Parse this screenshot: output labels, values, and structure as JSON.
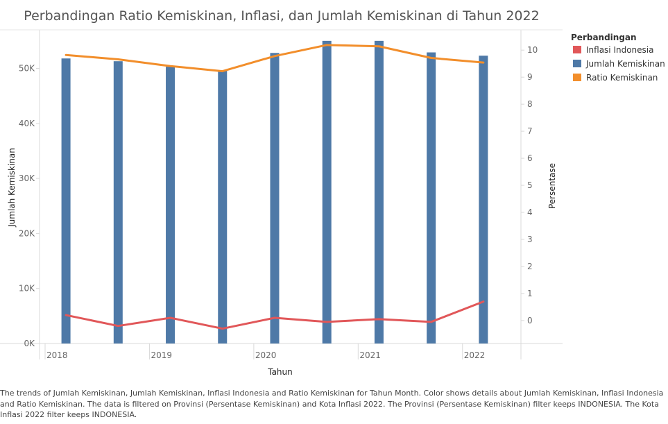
{
  "chart_data": {
    "type": "bar",
    "title": "Perbandingan Ratio Kemiskinan, Inflasi, dan Jumlah Kemiskinan di Tahun 2022",
    "xlabel": "Tahun",
    "ylabel_left": "Jumlah Kemiskinan",
    "ylabel_right": "Persentase",
    "x_ticks": [
      "2018",
      "2019",
      "2020",
      "2021",
      "2022"
    ],
    "x_range": [
      2018.0,
      2022.5
    ],
    "periods": [
      2018.2,
      2018.7,
      2019.2,
      2019.7,
      2020.2,
      2020.7,
      2021.2,
      2021.7,
      2022.2
    ],
    "y_left": {
      "range": [
        0,
        57000
      ],
      "ticks": [
        0,
        10000,
        20000,
        30000,
        40000,
        50000
      ],
      "tick_labels": [
        "0K",
        "10K",
        "20K",
        "30K",
        "40K",
        "50K"
      ]
    },
    "y_right": {
      "range": [
        -0.85,
        10.75
      ],
      "ticks": [
        0,
        1,
        2,
        3,
        4,
        5,
        6,
        7,
        8,
        9,
        10
      ],
      "tick_labels": [
        "0",
        "1",
        "2",
        "3",
        "4",
        "5",
        "6",
        "7",
        "8",
        "9",
        "10"
      ]
    },
    "grid": false,
    "legend_placement": "top-right",
    "legend_title": "Perbandingan",
    "series": [
      {
        "name": "Inflasi Indonesia",
        "type": "line",
        "axis": "right",
        "color": "#e15759",
        "values": [
          0.2,
          -0.2,
          0.1,
          -0.3,
          0.1,
          -0.05,
          0.05,
          -0.05,
          0.7
        ]
      },
      {
        "name": "Jumlah Kemiskinan",
        "type": "bar",
        "axis": "left",
        "color": "#4e79a7",
        "values": [
          51800,
          51300,
          50300,
          49600,
          52800,
          55000,
          55000,
          52900,
          52300
        ]
      },
      {
        "name": "Ratio Kemiskinan",
        "type": "line",
        "axis": "right",
        "color": "#f28e2b",
        "values": [
          9.82,
          9.66,
          9.41,
          9.22,
          9.78,
          10.19,
          10.14,
          9.71,
          9.54
        ]
      }
    ]
  },
  "caption": "The trends of Jumlah Kemiskinan, Jumlah Kemiskinan, Inflasi Indonesia and Ratio Kemiskinan for Tahun Month.  Color shows details about Jumlah Kemiskinan, Inflasi Indonesia and Ratio Kemiskinan. The data is filtered on Provinsi (Persentase Kemiskinan) and Kota Inflasi 2022. The Provinsi (Persentase Kemiskinan) filter keeps INDONESIA. The Kota Inflasi 2022 filter keeps INDONESIA."
}
